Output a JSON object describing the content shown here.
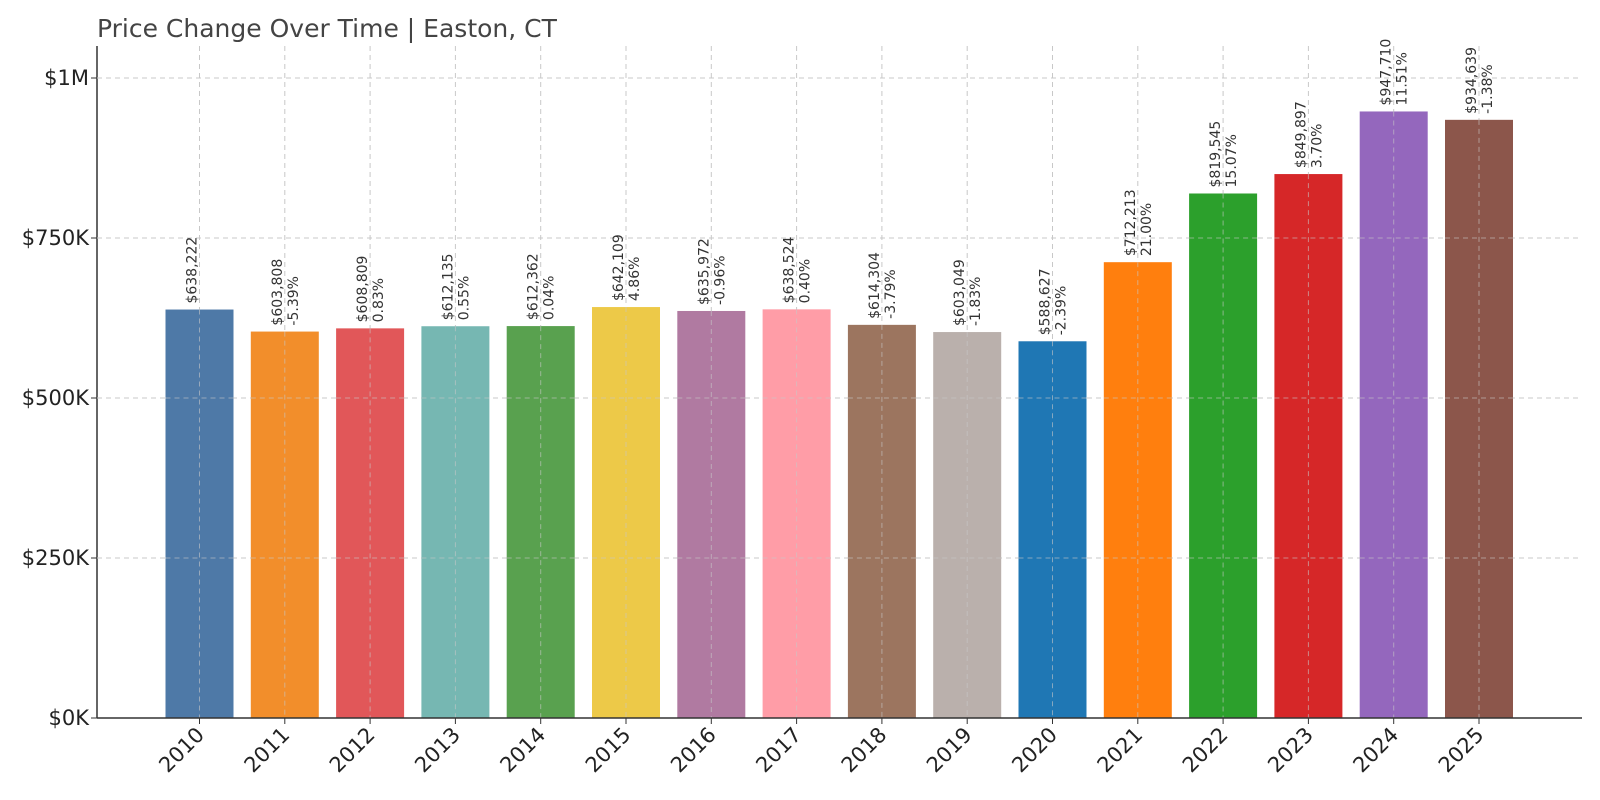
{
  "chart_data": {
    "type": "bar",
    "title": "Price Change Over Time | Easton, CT",
    "xlabel": "",
    "ylabel": "",
    "ylim": [
      0,
      1000000
    ],
    "grid": true,
    "categories": [
      "2010",
      "2011",
      "2012",
      "2013",
      "2014",
      "2015",
      "2016",
      "2017",
      "2018",
      "2019",
      "2020",
      "2021",
      "2022",
      "2023",
      "2024",
      "2025"
    ],
    "values": [
      638222,
      603808,
      608809,
      612135,
      612362,
      642109,
      635972,
      638524,
      614304,
      603049,
      588627,
      712213,
      819545,
      849897,
      947710,
      934639
    ],
    "value_labels": [
      "$638,222",
      "$603,808",
      "$608,809",
      "$612,135",
      "$612,362",
      "$642,109",
      "$635,972",
      "$638,524",
      "$614,304",
      "$603,049",
      "$588,627",
      "$712,213",
      "$819,545",
      "$849,897",
      "$947,710",
      "$934,639"
    ],
    "change_labels": [
      "",
      "-5.39%",
      "0.83%",
      "0.55%",
      "0.04%",
      "4.86%",
      "-0.96%",
      "0.40%",
      "-3.79%",
      "-1.83%",
      "-2.39%",
      "21.00%",
      "15.07%",
      "3.70%",
      "11.51%",
      "-1.38%"
    ],
    "y_ticks": [
      {
        "value": 0,
        "label": "$0K"
      },
      {
        "value": 250000,
        "label": "$250K"
      },
      {
        "value": 500000,
        "label": "$500K"
      },
      {
        "value": 750000,
        "label": "$750K"
      },
      {
        "value": 1000000,
        "label": "$1M"
      }
    ],
    "colors": [
      "#4e79a7",
      "#f28e2b",
      "#e15759",
      "#76b7b2",
      "#59a14f",
      "#edc948",
      "#b07aa1",
      "#ff9da7",
      "#9c755f",
      "#bab0ac",
      "#1f77b4",
      "#ff7f0e",
      "#2ca02c",
      "#d62728",
      "#9467bd",
      "#8c564b"
    ]
  }
}
